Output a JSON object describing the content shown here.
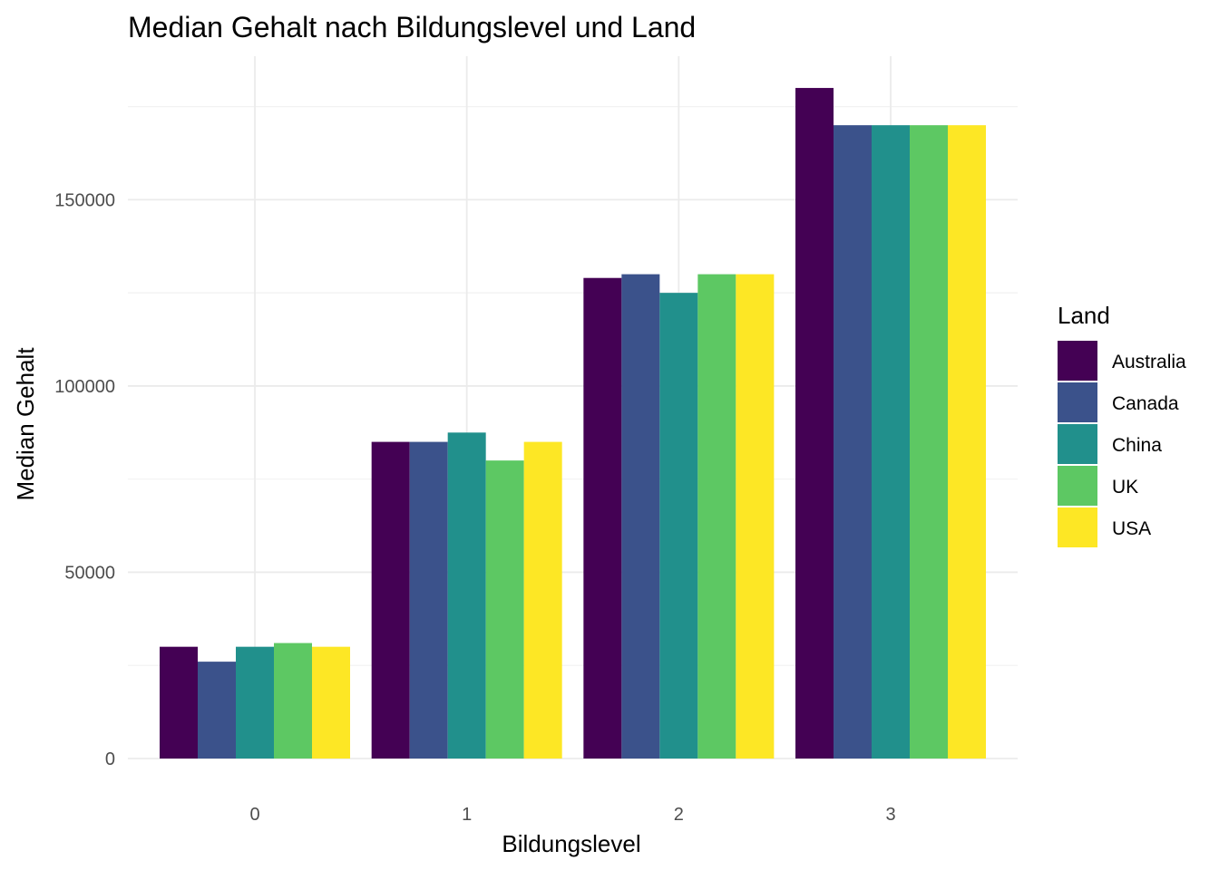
{
  "chart_data": {
    "type": "bar",
    "title": "Median Gehalt nach Bildungslevel und Land",
    "xlabel": "Bildungslevel",
    "ylabel": "Median Gehalt",
    "categories": [
      "0",
      "1",
      "2",
      "3"
    ],
    "ylim": [
      0,
      190000
    ],
    "yticks": [
      0,
      50000,
      100000,
      150000
    ],
    "yticks_labels": [
      "0",
      "50000",
      "100000",
      "150000"
    ],
    "grid": true,
    "legend": {
      "title": "Land",
      "position": "right"
    },
    "series": [
      {
        "name": "Australia",
        "color": "#440154",
        "values": [
          30000,
          85000,
          129000,
          180000
        ]
      },
      {
        "name": "Canada",
        "color": "#3B528B",
        "values": [
          26000,
          85000,
          130000,
          170000
        ]
      },
      {
        "name": "China",
        "color": "#21908C",
        "values": [
          30000,
          87500,
          125000,
          170000
        ]
      },
      {
        "name": "UK",
        "color": "#5DC863",
        "values": [
          31000,
          80000,
          130000,
          170000
        ]
      },
      {
        "name": "USA",
        "color": "#FDE725",
        "values": [
          30000,
          85000,
          130000,
          170000
        ]
      }
    ]
  }
}
